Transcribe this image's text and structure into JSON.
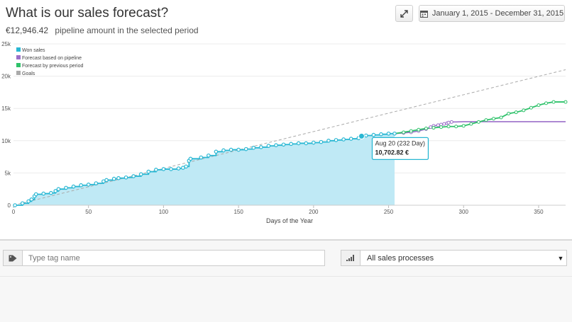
{
  "header": {
    "title": "What is our sales forecast?",
    "pipeline_amount": "€12,946.42",
    "pipeline_label": "pipeline amount in the selected period",
    "date_range": "January 1, 2015 - December 31, 2015"
  },
  "tooltip": {
    "date": "Aug 20 (232 Day)",
    "value": "10,702.82 €"
  },
  "filters": {
    "tag_placeholder": "Type tag name",
    "sales_process": "All sales processes"
  },
  "colors": {
    "won": "#29b7d3",
    "won_fill": "#bfe9f5",
    "pipeline": "#9b6fc9",
    "previous": "#2ec26a",
    "goals": "#aaaaaa"
  },
  "chart_data": {
    "type": "line",
    "xlabel": "Days of the Year",
    "ylabel": "",
    "xlim": [
      0,
      368
    ],
    "ylim": [
      0,
      25000
    ],
    "x_ticks": [
      0,
      50,
      100,
      150,
      200,
      250,
      300,
      350
    ],
    "y_ticks": [
      0,
      5000,
      10000,
      15000,
      20000,
      25000
    ],
    "y_tick_labels": [
      "0",
      "5k",
      "10k",
      "15k",
      "20k",
      "25k"
    ],
    "grid": true,
    "legend_position": "top-left",
    "series": [
      {
        "name": "Won sales",
        "kind": "step-area",
        "x": [
          1,
          6,
          10,
          12,
          14,
          15,
          20,
          25,
          28,
          30,
          35,
          40,
          45,
          50,
          55,
          60,
          62,
          67,
          70,
          75,
          80,
          85,
          90,
          95,
          100,
          105,
          110,
          113,
          115,
          117,
          118,
          125,
          130,
          135,
          140,
          145,
          150,
          155,
          160,
          165,
          170,
          175,
          180,
          185,
          190,
          195,
          200,
          205,
          210,
          215,
          220,
          225,
          230,
          232,
          235,
          240,
          245,
          250,
          254
        ],
        "values": [
          0,
          300,
          600,
          900,
          1400,
          1700,
          1800,
          1900,
          2200,
          2500,
          2700,
          2900,
          3100,
          3200,
          3400,
          3700,
          3900,
          4100,
          4200,
          4300,
          4500,
          4800,
          5200,
          5500,
          5600,
          5600,
          5700,
          5800,
          6000,
          6900,
          7200,
          7400,
          7700,
          8300,
          8500,
          8600,
          8600,
          8700,
          8900,
          9000,
          9200,
          9300,
          9400,
          9500,
          9600,
          9600,
          9700,
          9800,
          10000,
          10100,
          10200,
          10300,
          10400,
          10702.82,
          10800,
          10900,
          11000,
          11100,
          11100
        ]
      },
      {
        "name": "Forecast based on pipeline",
        "kind": "line",
        "x": [
          254,
          260,
          265,
          270,
          275,
          278,
          280,
          283,
          285,
          287,
          289,
          290,
          292,
          295,
          300,
          368
        ],
        "values": [
          11100,
          11200,
          11300,
          11500,
          11800,
          12100,
          12300,
          12400,
          12500,
          12600,
          12700,
          12800,
          12900,
          12900,
          12950,
          12950
        ]
      },
      {
        "name": "Forecast by previous period",
        "kind": "line",
        "x": [
          254,
          260,
          265,
          270,
          275,
          280,
          285,
          290,
          295,
          300,
          305,
          310,
          315,
          320,
          325,
          330,
          335,
          340,
          345,
          350,
          355,
          360,
          368
        ],
        "values": [
          11100,
          11300,
          11500,
          11700,
          11900,
          12000,
          12100,
          12200,
          12200,
          12300,
          12600,
          12900,
          13200,
          13400,
          13600,
          14200,
          14400,
          14700,
          15100,
          15500,
          15800,
          16000,
          16000
        ]
      },
      {
        "name": "Goals",
        "kind": "dashed",
        "x": [
          0,
          368
        ],
        "values": [
          0,
          21000
        ]
      }
    ],
    "highlight": {
      "x": 232,
      "y": 10702.82
    }
  }
}
